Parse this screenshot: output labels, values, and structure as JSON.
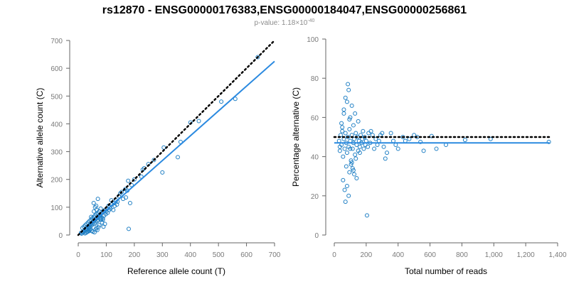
{
  "title": "rs12870 - ENSG00000176383,ENSG00000184047,ENSG00000256861",
  "subtitle": {
    "prefix": "p-value: 1.18×10",
    "exponent": "-40"
  },
  "colors": {
    "points": "#1f7fc4",
    "fit": "#2b8ae0",
    "reference": "#000000",
    "axis": "#666666",
    "tick_text": "#7a7a7a",
    "subtitle": "#8c8c8c"
  },
  "chart_data": [
    {
      "type": "scatter",
      "xlabel": "Reference allele count (T)",
      "ylabel": "Alternative allele count (C)",
      "xlim": [
        0,
        700
      ],
      "ylim": [
        0,
        700
      ],
      "xticks": [
        0,
        100,
        200,
        300,
        400,
        500,
        600,
        700
      ],
      "yticks": [
        0,
        100,
        200,
        300,
        400,
        500,
        600,
        700
      ],
      "xtick_labels": [
        "0",
        "100",
        "200",
        "300",
        "400",
        "500",
        "600",
        "700"
      ],
      "ytick_labels": [
        "0",
        "100",
        "200",
        "300",
        "400",
        "500",
        "600",
        "700"
      ],
      "grid": false,
      "reference_line": {
        "style": "dotted",
        "x": [
          0,
          700
        ],
        "y": [
          0,
          700
        ]
      },
      "fit_line": {
        "style": "solid",
        "x": [
          0,
          700
        ],
        "y": [
          0,
          625
        ]
      },
      "x": [
        640,
        560,
        510,
        430,
        400,
        365,
        355,
        305,
        300,
        270,
        250,
        235,
        230,
        225,
        200,
        190,
        185,
        180,
        178,
        175,
        170,
        168,
        160,
        155,
        150,
        145,
        140,
        138,
        135,
        130,
        128,
        125,
        120,
        118,
        115,
        112,
        110,
        108,
        105,
        102,
        100,
        98,
        95,
        92,
        90,
        88,
        85,
        82,
        80,
        80,
        78,
        75,
        75,
        72,
        70,
        70,
        68,
        65,
        65,
        62,
        60,
        60,
        58,
        55,
        55,
        52,
        50,
        50,
        48,
        45,
        45,
        42,
        40,
        40,
        38,
        35,
        35,
        32,
        30,
        30,
        28,
        25,
        25,
        22,
        20,
        20,
        18,
        15,
        15,
        12,
        10,
        60,
        70,
        55,
        85,
        90,
        95,
        62,
        65,
        75,
        48,
        52,
        58,
        68,
        72,
        42,
        38,
        34,
        28,
        24,
        30,
        36,
        44,
        66,
        78,
        82,
        88,
        64,
        56,
        46
      ],
      "y": [
        640,
        490,
        480,
        410,
        405,
        335,
        280,
        315,
        225,
        270,
        255,
        240,
        235,
        210,
        200,
        180,
        115,
        22,
        195,
        160,
        135,
        165,
        130,
        155,
        150,
        140,
        120,
        110,
        125,
        105,
        115,
        90,
        110,
        125,
        95,
        100,
        90,
        105,
        80,
        95,
        85,
        75,
        90,
        70,
        85,
        60,
        80,
        55,
        75,
        95,
        60,
        70,
        85,
        55,
        65,
        80,
        50,
        60,
        75,
        45,
        55,
        70,
        40,
        50,
        65,
        40,
        45,
        60,
        35,
        40,
        55,
        30,
        35,
        50,
        25,
        30,
        45,
        20,
        25,
        40,
        20,
        20,
        35,
        15,
        15,
        30,
        10,
        10,
        25,
        5,
        8,
        100,
        130,
        115,
        45,
        30,
        40,
        20,
        25,
        35,
        15,
        12,
        10,
        18,
        28,
        18,
        14,
        12,
        8,
        6,
        12,
        16,
        22,
        90,
        70,
        60,
        55,
        105,
        85,
        65
      ]
    },
    {
      "type": "scatter",
      "xlabel": "Total number of reads",
      "ylabel": "Percentage alternative (C)",
      "xlim": [
        0,
        1400
      ],
      "ylim": [
        0,
        100
      ],
      "xticks": [
        0,
        200,
        400,
        600,
        800,
        1000,
        1200,
        1400
      ],
      "yticks": [
        0,
        20,
        40,
        60,
        80,
        100
      ],
      "xtick_labels": [
        "0",
        "200",
        "400",
        "600",
        "800",
        "1,000",
        "1,200",
        "1,400"
      ],
      "ytick_labels": [
        "0",
        "20",
        "40",
        "60",
        "80",
        "100"
      ],
      "grid": false,
      "reference_line": {
        "style": "dotted",
        "x": [
          0,
          1350
        ],
        "y": [
          50,
          50
        ]
      },
      "fit_line": {
        "style": "solid",
        "x": [
          0,
          1350
        ],
        "y": [
          47,
          47
        ]
      },
      "x": [
        1345,
        980,
        820,
        700,
        640,
        610,
        560,
        540,
        520,
        500,
        470,
        445,
        430,
        400,
        385,
        370,
        355,
        330,
        320,
        310,
        300,
        290,
        280,
        270,
        260,
        250,
        240,
        230,
        225,
        215,
        210,
        205,
        200,
        195,
        190,
        185,
        180,
        175,
        170,
        165,
        160,
        155,
        150,
        145,
        140,
        135,
        130,
        125,
        120,
        115,
        110,
        105,
        100,
        95,
        90,
        85,
        80,
        75,
        70,
        65,
        60,
        55,
        50,
        45,
        40,
        35,
        30,
        85,
        90,
        70,
        110,
        130,
        150,
        60,
        100,
        120,
        75,
        95,
        140,
        55,
        80,
        65,
        105,
        115,
        125,
        45,
        50,
        35,
        135,
        160,
        100,
        70,
        90,
        110,
        120,
        80,
        60,
        95
      ],
      "y": [
        47.5,
        49,
        48.5,
        46,
        44,
        50.5,
        43,
        47.5,
        50,
        51,
        49,
        48,
        50,
        44,
        46,
        48,
        52,
        42,
        39,
        45,
        52,
        51,
        48,
        46,
        49,
        44,
        51,
        53,
        47,
        52,
        45,
        10,
        48,
        46,
        50,
        44,
        53,
        49,
        47,
        51,
        45,
        48,
        43,
        50,
        46,
        52,
        41,
        49,
        47,
        44,
        51,
        38,
        48,
        54,
        45,
        50,
        42,
        47,
        52,
        44,
        49,
        40,
        55,
        46,
        51,
        43,
        48,
        77,
        74,
        70,
        66,
        62,
        58,
        64,
        60,
        56,
        35,
        32,
        29,
        28,
        25,
        23,
        36,
        34,
        31,
        57,
        53,
        45,
        39,
        42,
        44,
        17,
        20,
        37,
        33,
        68,
        62,
        59
      ]
    }
  ]
}
